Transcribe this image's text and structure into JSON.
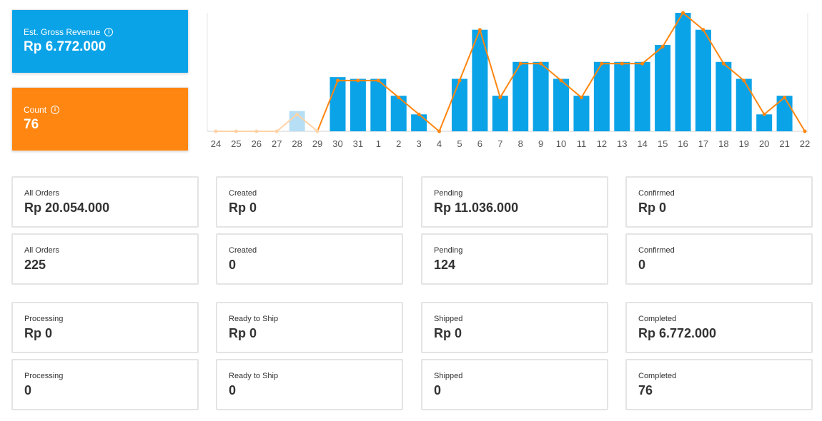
{
  "kpis": {
    "revenue": {
      "label": "Est. Gross Revenue",
      "value": "Rp 6.772.000",
      "color": "#0aa3e8"
    },
    "count": {
      "label": "Count",
      "value": "76",
      "color": "#ff8610"
    }
  },
  "chart_data": {
    "type": "bar",
    "categories": [
      "24",
      "25",
      "26",
      "27",
      "28",
      "29",
      "30",
      "31",
      "1",
      "2",
      "3",
      "4",
      "5",
      "6",
      "7",
      "8",
      "9",
      "10",
      "11",
      "12",
      "13",
      "14",
      "15",
      "16",
      "17",
      "18",
      "19",
      "20",
      "21",
      "22"
    ],
    "series": [
      {
        "values": [
          0,
          0,
          0,
          0,
          1.2,
          0,
          3.2,
          3.1,
          3.1,
          2.1,
          1.0,
          0,
          3.1,
          6.0,
          2.1,
          4.1,
          4.1,
          3.1,
          2.1,
          4.1,
          4.1,
          4.1,
          5.1,
          7.0,
          6.0,
          4.1,
          3.1,
          1.0,
          2.1,
          0
        ]
      },
      {
        "values": [
          0,
          0,
          0,
          0,
          1,
          0,
          3,
          3,
          3,
          2,
          1,
          0,
          3,
          6,
          2,
          4,
          4,
          3,
          2,
          4,
          4,
          4,
          5,
          7,
          6,
          4,
          3,
          1,
          2,
          0
        ]
      }
    ],
    "ylim": [
      0,
      7
    ],
    "highlight_start": 6,
    "colors": {
      "bar": "#0aa3e8",
      "bar_faded": "#b6def5",
      "line": "#ff8610",
      "line_faded": "#ffd3a6",
      "grid": "#e6e6e6"
    }
  },
  "cards": [
    [
      {
        "label": "All Orders",
        "value": "Rp 20.054.000"
      },
      {
        "label": "Created",
        "value": "Rp 0"
      },
      {
        "label": "Pending",
        "value": "Rp 11.036.000"
      },
      {
        "label": "Confirmed",
        "value": "Rp 0"
      }
    ],
    [
      {
        "label": "All Orders",
        "value": "225"
      },
      {
        "label": "Created",
        "value": "0"
      },
      {
        "label": "Pending",
        "value": "124"
      },
      {
        "label": "Confirmed",
        "value": "0"
      }
    ],
    [
      {
        "label": "Processing",
        "value": "Rp 0"
      },
      {
        "label": "Ready to Ship",
        "value": "Rp 0"
      },
      {
        "label": "Shipped",
        "value": "Rp 0"
      },
      {
        "label": "Completed",
        "value": "Rp 6.772.000"
      }
    ],
    [
      {
        "label": "Processing",
        "value": "0"
      },
      {
        "label": "Ready to Ship",
        "value": "0"
      },
      {
        "label": "Shipped",
        "value": "0"
      },
      {
        "label": "Completed",
        "value": "76"
      }
    ]
  ]
}
